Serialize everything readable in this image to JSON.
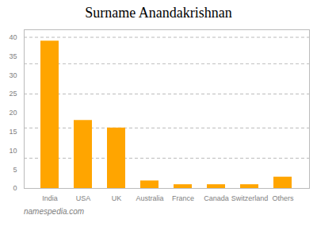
{
  "chart_data": {
    "type": "bar",
    "title": "Surname Anandakrishnan",
    "categories": [
      "India",
      "USA",
      "UK",
      "Australia",
      "France",
      "Canada",
      "Switzerland",
      "Others"
    ],
    "values": [
      39,
      18,
      16,
      2,
      1,
      1,
      1,
      3
    ],
    "color": "#FFA500",
    "ylim": [
      0,
      42
    ],
    "yticks": [
      0,
      5,
      10,
      15,
      20,
      25,
      30,
      35,
      40
    ],
    "grid": true,
    "grid_lines": [
      8,
      16,
      25,
      33,
      40
    ],
    "caption": "namespedia.com"
  }
}
